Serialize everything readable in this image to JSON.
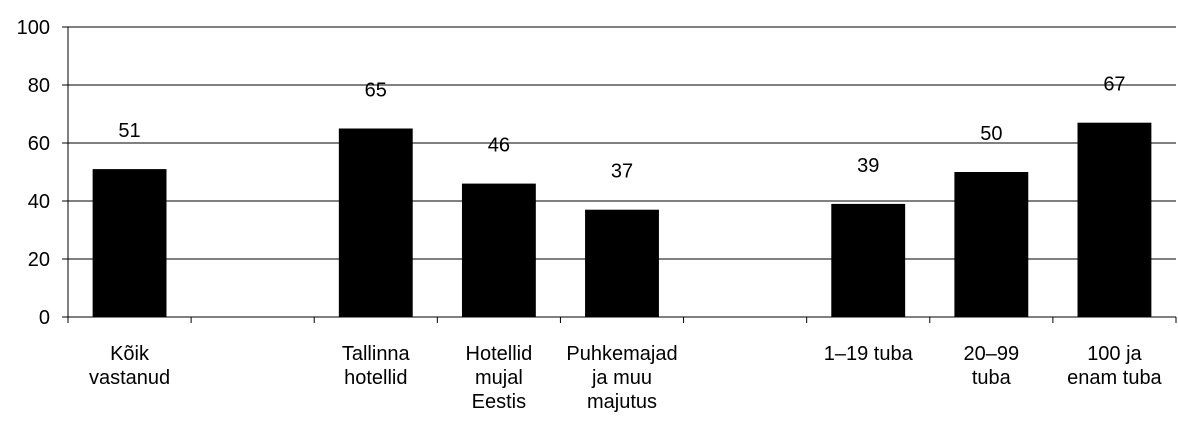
{
  "chart_data": {
    "type": "bar",
    "categories": [
      "Kõik vastanud",
      null,
      "Tallinna hotellid",
      "Hotellid mujal Eestis",
      "Puhkemajad ja muu majutus",
      null,
      "1–19 tuba",
      "20–99 tuba",
      "100 ja enam tuba"
    ],
    "values": [
      51,
      null,
      65,
      46,
      37,
      null,
      39,
      50,
      67
    ],
    "color": "#000000",
    "ylim": [
      0,
      100
    ],
    "yticks": [
      0,
      20,
      40,
      60,
      80,
      100
    ],
    "grid": true
  }
}
